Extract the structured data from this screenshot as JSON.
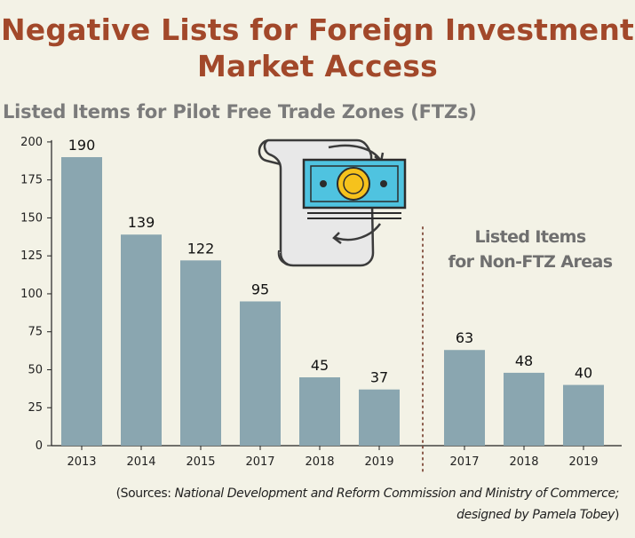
{
  "header": {
    "title_line1": "Negative Lists for Foreign Investment",
    "title_line2": "Market Access"
  },
  "chart_data": [
    {
      "type": "bar",
      "title": "Listed Items for Pilot Free Trade Zones (FTZs)",
      "categories": [
        "2013",
        "2014",
        "2015",
        "2017",
        "2018",
        "2019"
      ],
      "values": [
        190,
        139,
        122,
        95,
        45,
        37
      ],
      "ylim": [
        0,
        200
      ],
      "yticks": [
        0,
        25,
        50,
        75,
        100,
        125,
        150,
        175,
        200
      ],
      "bar_color": "#8aa6b0",
      "data_labels": true
    },
    {
      "type": "bar",
      "title_line1": "Listed Items",
      "title_line2": "for Non-FTZ Areas",
      "categories": [
        "2017",
        "2018",
        "2019"
      ],
      "values": [
        63,
        48,
        40
      ],
      "ylim": [
        0,
        200
      ],
      "bar_color": "#8aa6b0",
      "data_labels": true
    }
  ],
  "source": {
    "line1_prefix": "(Sources: ",
    "line1_italic": "National Development and Reform Commission and Ministry of Commerce;",
    "line2_italic": "designed by Pamela Tobey",
    "line2_suffix": ")"
  },
  "colors": {
    "title": "#a2482a",
    "bars": "#8aa6b0",
    "background": "#f3f2e6",
    "banknote": "#4fc3e0",
    "coin": "#f6c21c"
  },
  "icon": "money-scroll-icon"
}
